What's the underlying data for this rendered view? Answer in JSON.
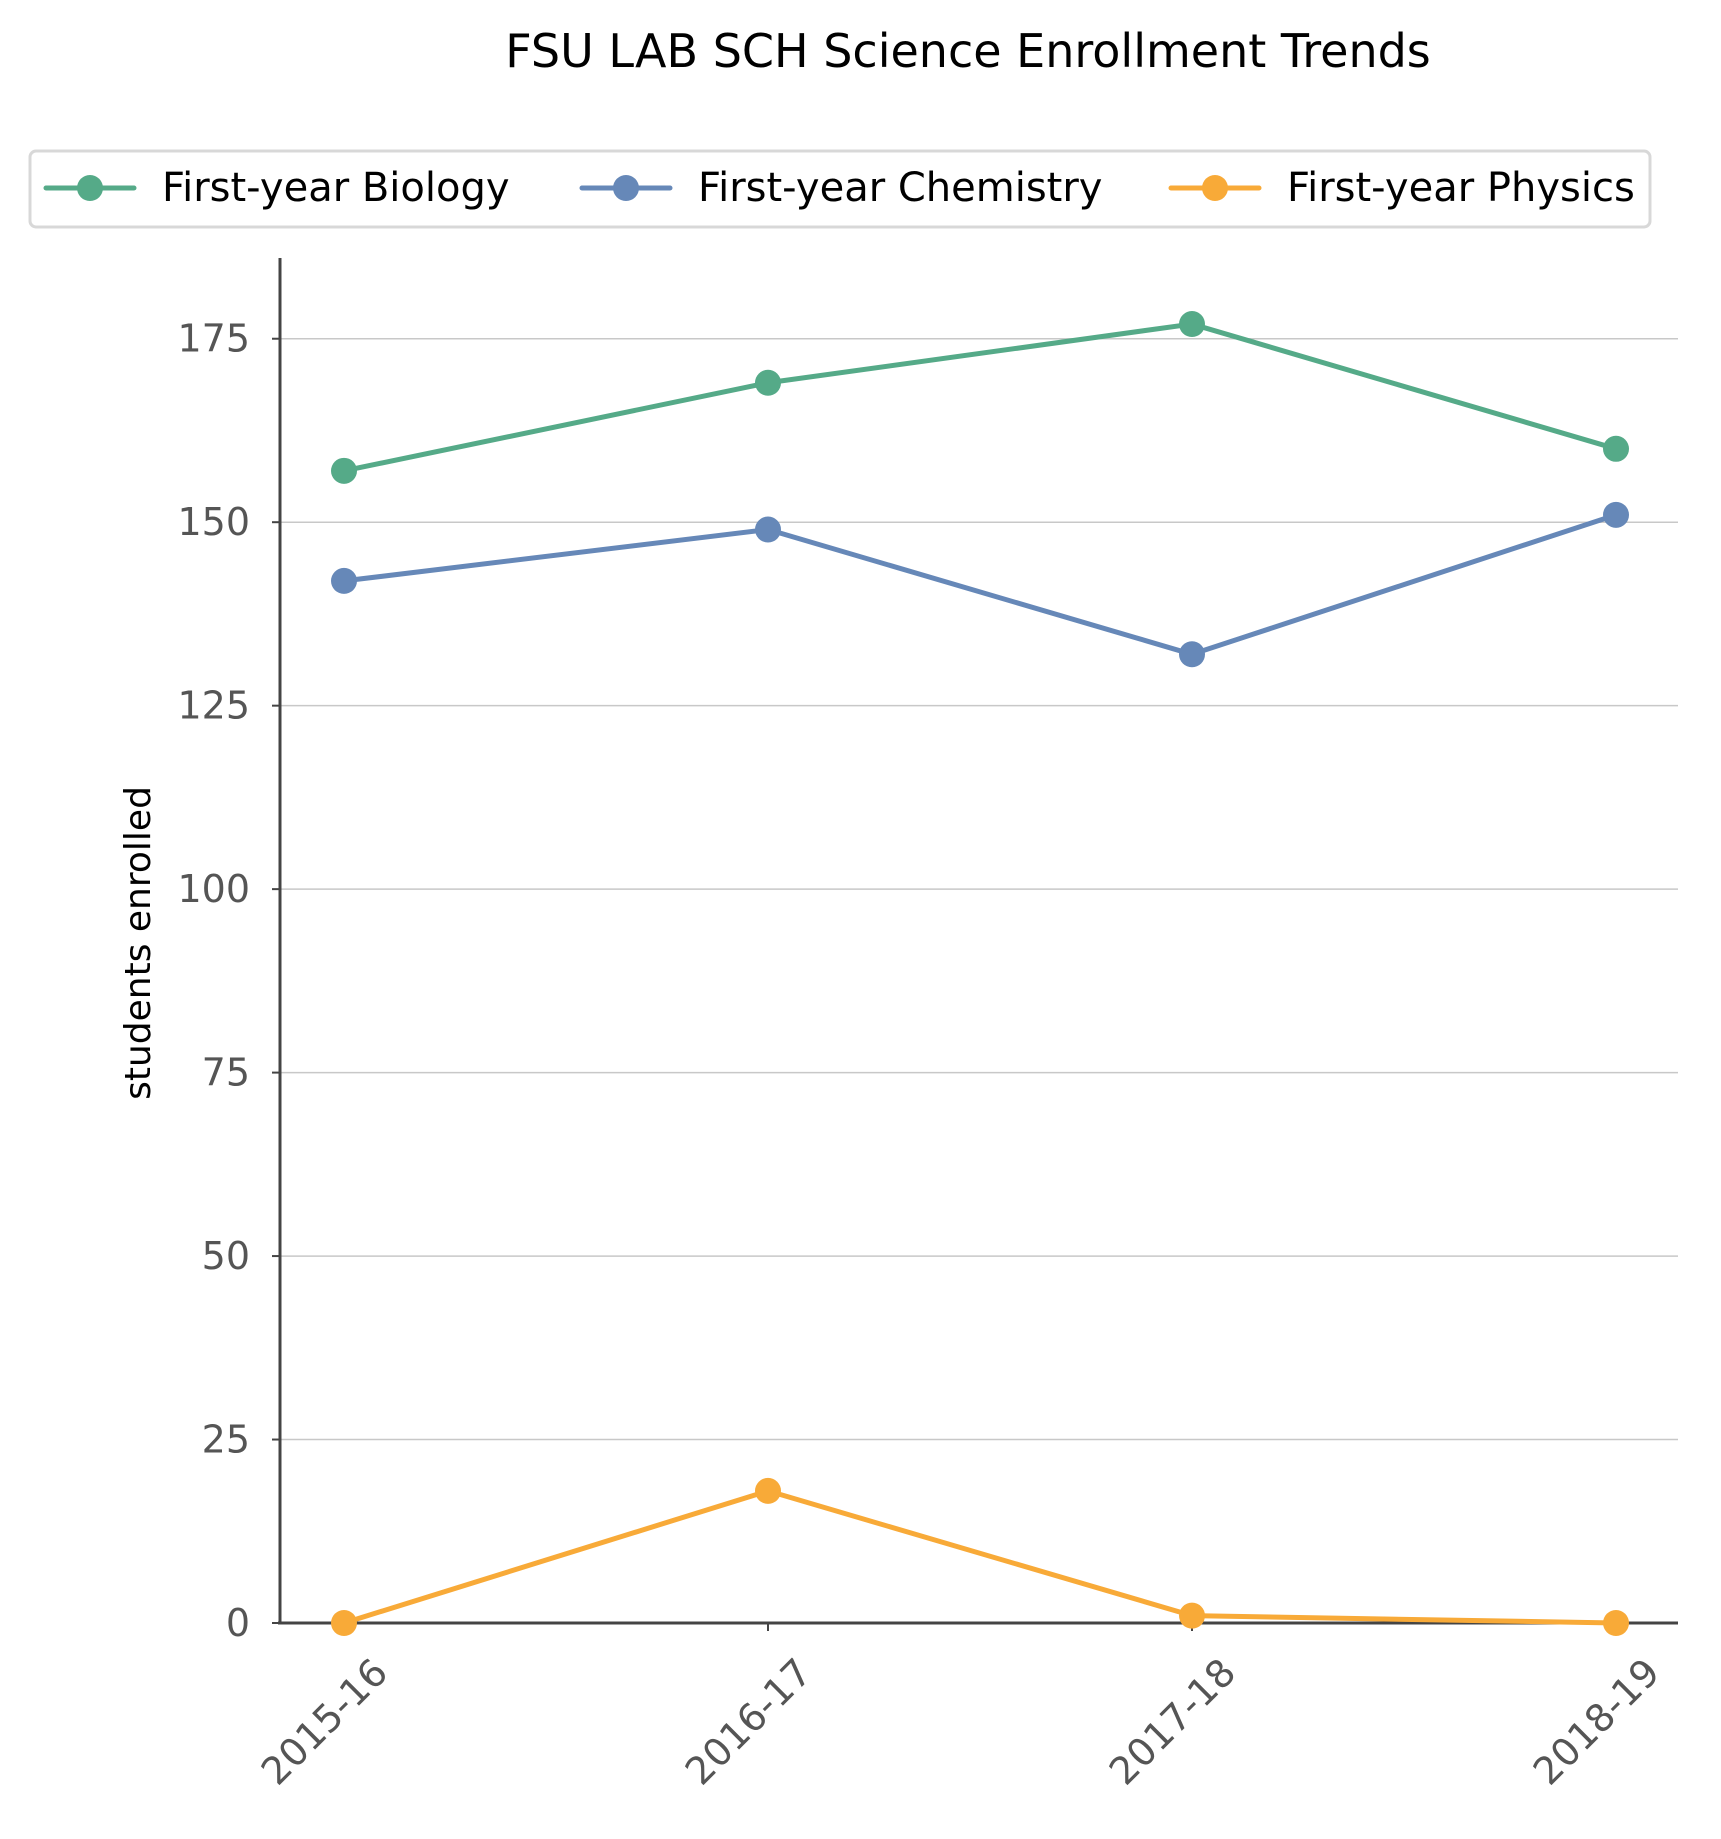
{
  "chart_data": {
    "type": "line",
    "title": "FSU LAB SCH Science Enrollment Trends",
    "xlabel": "",
    "ylabel": "students enrolled",
    "categories": [
      "2015-16",
      "2016-17",
      "2017-18",
      "2018-19"
    ],
    "ylim": [
      0,
      186
    ],
    "yticks": [
      0,
      25,
      50,
      75,
      100,
      125,
      150,
      175
    ],
    "grid": "horizontal",
    "legend_position": "top",
    "series": [
      {
        "name": "First-year Biology",
        "color": "#55aa88",
        "values": [
          157,
          169,
          177,
          160
        ]
      },
      {
        "name": "First-year Chemistry",
        "color": "#6688b8",
        "values": [
          142,
          149,
          132,
          151
        ]
      },
      {
        "name": "First-year Physics",
        "color": "#f8aa38",
        "values": [
          0,
          18,
          1,
          0
        ]
      }
    ]
  }
}
